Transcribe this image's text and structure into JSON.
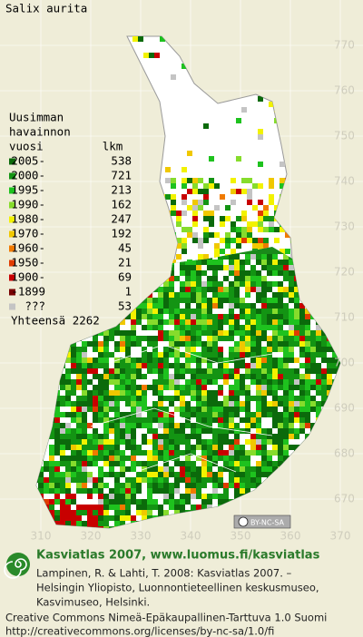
{
  "title": "Salix aurita",
  "legend": {
    "header": [
      "Uusimman",
      "havainnon"
    ],
    "col_year": "vuosi",
    "col_count": "lkm",
    "rows": [
      {
        "label": "2005-",
        "count": "538",
        "color": "#0b6a0b"
      },
      {
        "label": "2000-",
        "count": "721",
        "color": "#139413"
      },
      {
        "label": "1995-",
        "count": "213",
        "color": "#1ec21e"
      },
      {
        "label": "1990-",
        "count": "162",
        "color": "#86dc2c"
      },
      {
        "label": "1980-",
        "count": "247",
        "color": "#f2f200"
      },
      {
        "label": "1970-",
        "count": "192",
        "color": "#f0c800"
      },
      {
        "label": "1960-",
        "count": "45",
        "color": "#f07a00"
      },
      {
        "label": "1950-",
        "count": "21",
        "color": "#e03c00"
      },
      {
        "label": "1900-",
        "count": "69",
        "color": "#c80000"
      },
      {
        "label": "-1899",
        "count": "1",
        "color": "#780000"
      },
      {
        "label": "???",
        "count": "53",
        "color": "#c4c4c4"
      }
    ],
    "total": "Yhteensä 2262"
  },
  "grid_labels_y": [
    "770",
    "760",
    "750",
    "740",
    "730",
    "720",
    "710",
    "700",
    "690",
    "680",
    "670"
  ],
  "grid_labels_x": [
    "310",
    "320",
    "330",
    "340",
    "350",
    "360",
    "370"
  ],
  "license_badge": "BY-NC-SA",
  "footer": {
    "heading": "Kasviatlas 2007, www.luomus.fi/kasviatlas",
    "citation": [
      "Lampinen, R. & Lahti, T. 2008: Kasviatlas 2007. –",
      "Helsingin Yliopisto, Luonnontieteellinen keskusmuseo,",
      "Kasvimuseo, Helsinki."
    ],
    "license": [
      "Creative Commons Nimeä-Epäkaupallinen-Tarttuva 1.0 Suomi",
      "http://creativecommons.org/licenses/by-nc-sa/1.0/fi"
    ]
  }
}
